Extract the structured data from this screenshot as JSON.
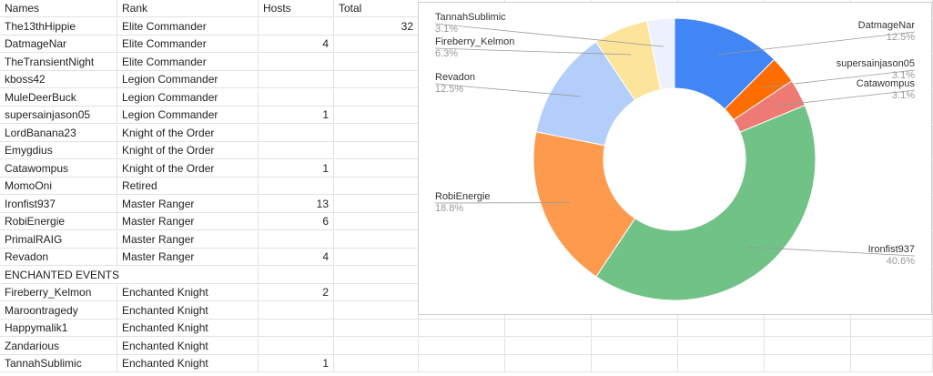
{
  "sheet": {
    "headers": [
      "Names",
      "Rank",
      "Hosts",
      "Total"
    ],
    "rows": [
      {
        "name": "The13thHippie",
        "rank": "Elite Commander",
        "hosts": "",
        "total": "32"
      },
      {
        "name": "DatmageNar",
        "rank": "Elite Commander",
        "hosts": "4",
        "total": ""
      },
      {
        "name": "TheTransientNight",
        "rank": "Elite Commander",
        "hosts": "",
        "total": ""
      },
      {
        "name": "kboss42",
        "rank": "Legion Commander",
        "hosts": "",
        "total": ""
      },
      {
        "name": "MuleDeerBuck",
        "rank": "Legion Commander",
        "hosts": "",
        "total": ""
      },
      {
        "name": "supersainjason05",
        "rank": "Legion Commander",
        "hosts": "1",
        "total": ""
      },
      {
        "name": "LordBanana23",
        "rank": "Knight of the Order",
        "hosts": "",
        "total": ""
      },
      {
        "name": "Emygdius",
        "rank": "Knight of the Order",
        "hosts": "",
        "total": ""
      },
      {
        "name": "Catawompus",
        "rank": "Knight of the Order",
        "hosts": "1",
        "total": ""
      },
      {
        "name": "MomoOni",
        "rank": "Retired",
        "hosts": "",
        "total": ""
      },
      {
        "name": "Ironfist937",
        "rank": "Master Ranger",
        "hosts": "13",
        "total": ""
      },
      {
        "name": "RobiEnergie",
        "rank": "Master Ranger",
        "hosts": "6",
        "total": ""
      },
      {
        "name": "PrimalRAIG",
        "rank": "Master Ranger",
        "hosts": "",
        "total": ""
      },
      {
        "name": "Revadon",
        "rank": "Master Ranger",
        "hosts": "4",
        "total": ""
      },
      {
        "name": "ENCHANTED EVENTS",
        "rank": "",
        "hosts": "",
        "total": "",
        "section": true
      },
      {
        "name": "Fireberry_Kelmon",
        "rank": "Enchanted Knight",
        "hosts": "2",
        "total": ""
      },
      {
        "name": "Maroontragedy",
        "rank": "Enchanted Knight",
        "hosts": "",
        "total": ""
      },
      {
        "name": "Happymalik1",
        "rank": "Enchanted Knight",
        "hosts": "",
        "total": ""
      },
      {
        "name": "Zandarious",
        "rank": "Enchanted Knight",
        "hosts": "",
        "total": ""
      },
      {
        "name": "TannahSublimic",
        "rank": "Enchanted Knight",
        "hosts": "1",
        "total": ""
      }
    ]
  },
  "chart_data": {
    "type": "pie",
    "donut": true,
    "title": "",
    "legend": "none",
    "slices": [
      {
        "label": "DatmageNar",
        "value": 4,
        "pct": "12.5%",
        "color": "#4285f4"
      },
      {
        "label": "supersainjason05",
        "value": 1,
        "pct": "3.1%",
        "color": "#ff6d01"
      },
      {
        "label": "Catawompus",
        "value": 1,
        "pct": "3.1%",
        "color": "#ee7a73"
      },
      {
        "label": "Ironfist937",
        "value": 13,
        "pct": "40.6%",
        "color": "#71c287"
      },
      {
        "label": "RobiEnergie",
        "value": 6,
        "pct": "18.8%",
        "color": "#fd9a4e"
      },
      {
        "label": "Revadon",
        "value": 4,
        "pct": "12.5%",
        "color": "#b3cefb"
      },
      {
        "label": "Fireberry_Kelmon",
        "value": 2,
        "pct": "6.3%",
        "color": "#fde49b"
      },
      {
        "label": "TannahSublimic",
        "value": 1,
        "pct": "3.1%",
        "color": "#ecf1fd"
      }
    ]
  }
}
